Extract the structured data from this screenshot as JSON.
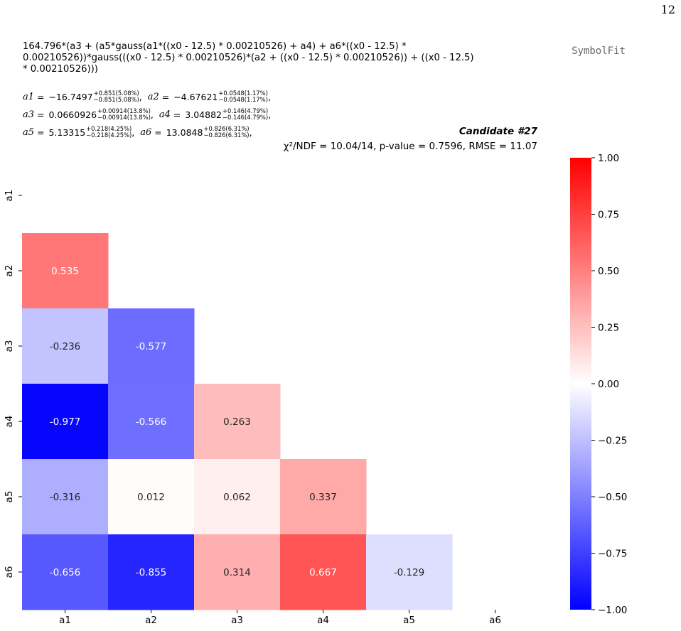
{
  "page_number": "12",
  "formula": "164.796*(a3 + (a5*gauss(a1*((x0 - 12.5) * 0.00210526) + a4) + a6*((x0 - 12.5) *\n0.00210526))*gauss(((x0 - 12.5) * 0.00210526)*(a2 + ((x0 - 12.5) * 0.00210526)) + ((x0 - 12.5)\n* 0.00210526)))",
  "logo": "SymbolFit",
  "params": [
    {
      "name": "a1",
      "value": "−16.7497",
      "plus": "+0.851(5.08%)",
      "minus": "−0.851(5.08%)",
      "sep": ","
    },
    {
      "name": "a2",
      "value": "−4.67621",
      "plus": "+0.0548(1.17%)",
      "minus": "−0.0548(1.17%)",
      "sep": ","
    },
    {
      "name": "a3",
      "value": "0.0660926",
      "plus": "+0.00914(13.8%)",
      "minus": "−0.00914(13.8%)",
      "sep": ","
    },
    {
      "name": "a4",
      "value": "3.04882",
      "plus": "+0.146(4.79%)",
      "minus": "−0.146(4.79%)",
      "sep": ","
    },
    {
      "name": "a5",
      "value": "5.13315",
      "plus": "+0.218(4.25%)",
      "minus": "−0.218(4.25%)",
      "sep": ","
    },
    {
      "name": "a6",
      "value": "13.0848",
      "plus": "+0.826(6.31%)",
      "minus": "−0.826(6.31%)",
      "sep": ","
    }
  ],
  "candidate": "Candidate #27",
  "stats": "χ²/NDF = 10.04/14, p-value = 0.7596, RMSE = 11.07",
  "chart_data": {
    "type": "heatmap",
    "rows": [
      "a1",
      "a2",
      "a3",
      "a4",
      "a5",
      "a6"
    ],
    "cols": [
      "a1",
      "a2",
      "a3",
      "a4",
      "a5",
      "a6"
    ],
    "mask": "lower-triangle",
    "values": [
      [
        null,
        null,
        null,
        null,
        null,
        null
      ],
      [
        0.535,
        null,
        null,
        null,
        null,
        null
      ],
      [
        -0.236,
        -0.577,
        null,
        null,
        null,
        null
      ],
      [
        -0.977,
        -0.566,
        0.263,
        null,
        null,
        null
      ],
      [
        -0.316,
        0.012,
        0.062,
        0.337,
        null,
        null
      ],
      [
        -0.656,
        -0.855,
        0.314,
        0.667,
        -0.129,
        null
      ]
    ],
    "colormap": "bwr",
    "vmin": -1.0,
    "vmax": 1.0,
    "colorbar_ticks": [
      1.0,
      0.75,
      0.5,
      0.25,
      0.0,
      -0.25,
      -0.5,
      -0.75,
      -1.0
    ],
    "colorbar_tick_labels": [
      "1.00",
      "0.75",
      "0.50",
      "0.25",
      "0.00",
      "−0.25",
      "−0.50",
      "−0.75",
      "−1.00"
    ]
  }
}
